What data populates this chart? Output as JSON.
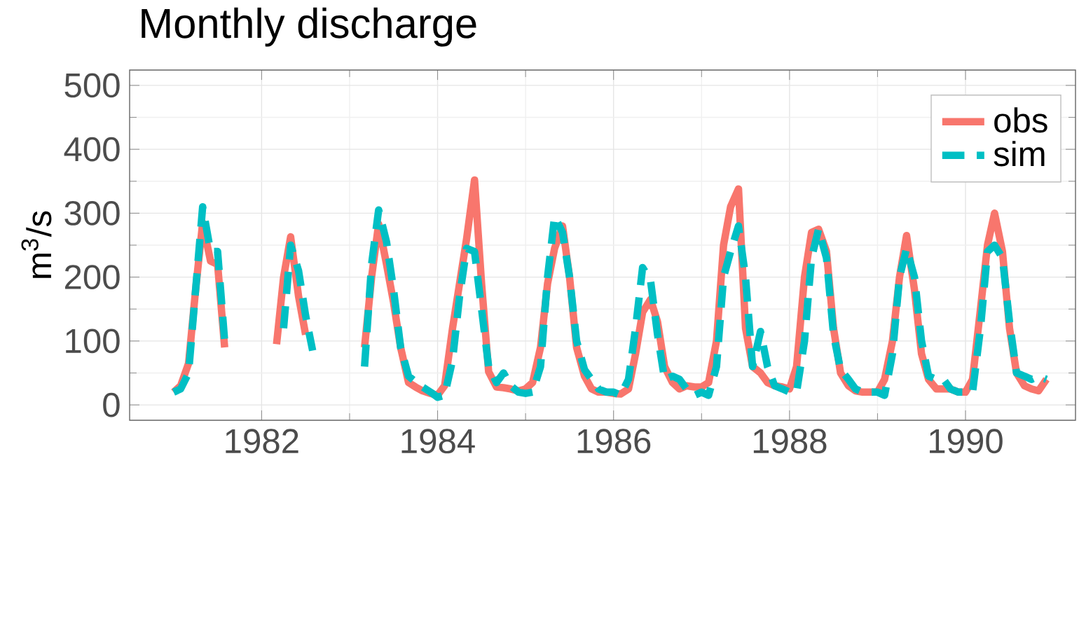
{
  "chart_data": {
    "type": "line",
    "title": "Monthly discharge",
    "ylabel": "m$^{3}$/s",
    "x": [
      "1981-01",
      "1981-02",
      "1981-03",
      "1981-04",
      "1981-05",
      "1981-06",
      "1981-07",
      "1981-08",
      "1981-09",
      "1981-10",
      "1981-11",
      "1981-12",
      "1982-01",
      "1982-02",
      "1982-03",
      "1982-04",
      "1982-05",
      "1982-06",
      "1982-07",
      "1982-08",
      "1982-09",
      "1982-10",
      "1982-11",
      "1982-12",
      "1983-01",
      "1983-02",
      "1983-03",
      "1983-04",
      "1983-05",
      "1983-06",
      "1983-07",
      "1983-08",
      "1983-09",
      "1983-10",
      "1983-11",
      "1983-12",
      "1984-01",
      "1984-02",
      "1984-03",
      "1984-04",
      "1984-05",
      "1984-06",
      "1984-07",
      "1984-08",
      "1984-09",
      "1984-10",
      "1984-11",
      "1984-12",
      "1985-01",
      "1985-02",
      "1985-03",
      "1985-04",
      "1985-05",
      "1985-06",
      "1985-07",
      "1985-08",
      "1985-09",
      "1985-10",
      "1985-11",
      "1985-12",
      "1986-01",
      "1986-02",
      "1986-03",
      "1986-04",
      "1986-05",
      "1986-06",
      "1986-07",
      "1986-08",
      "1986-09",
      "1986-10",
      "1986-11",
      "1986-12",
      "1987-01",
      "1987-02",
      "1987-03",
      "1987-04",
      "1987-05",
      "1987-06",
      "1987-07",
      "1987-08",
      "1987-09",
      "1987-10",
      "1987-11",
      "1987-12",
      "1988-01",
      "1988-02",
      "1988-03",
      "1988-04",
      "1988-05",
      "1988-06",
      "1988-07",
      "1988-08",
      "1988-09",
      "1988-10",
      "1988-11",
      "1988-12",
      "1989-01",
      "1989-02",
      "1989-03",
      "1989-04",
      "1989-05",
      "1989-06",
      "1989-07",
      "1989-08",
      "1989-09",
      "1989-10",
      "1989-11",
      "1989-12",
      "1990-01",
      "1990-02",
      "1990-03",
      "1990-04",
      "1990-05",
      "1990-06",
      "1990-07",
      "1990-08",
      "1990-09",
      "1990-10",
      "1990-11",
      "1990-12"
    ],
    "series": [
      {
        "name": "obs",
        "color": "#f8766d",
        "line_style": "solid",
        "values": [
          20,
          30,
          65,
          180,
          285,
          225,
          220,
          90,
          null,
          null,
          null,
          null,
          null,
          null,
          95,
          200,
          263,
          170,
          110,
          null,
          null,
          null,
          null,
          null,
          null,
          null,
          90,
          200,
          283,
          220,
          160,
          90,
          35,
          28,
          22,
          18,
          15,
          30,
          120,
          190,
          260,
          352,
          190,
          52,
          28,
          27,
          25,
          22,
          25,
          35,
          90,
          190,
          245,
          280,
          200,
          90,
          45,
          25,
          20,
          20,
          18,
          17,
          25,
          80,
          145,
          165,
          130,
          60,
          35,
          25,
          30,
          28,
          28,
          35,
          100,
          250,
          310,
          338,
          120,
          60,
          50,
          35,
          30,
          28,
          25,
          60,
          200,
          270,
          275,
          240,
          120,
          50,
          30,
          22,
          20,
          20,
          20,
          40,
          100,
          200,
          265,
          180,
          80,
          40,
          25,
          25,
          25,
          20,
          20,
          40,
          150,
          250,
          300,
          240,
          120,
          50,
          30,
          25,
          22,
          40
        ]
      },
      {
        "name": "sim",
        "color": "#00bfc4",
        "line_style": "dashed",
        "values": [
          20,
          25,
          50,
          180,
          310,
          240,
          240,
          100,
          null,
          null,
          null,
          null,
          null,
          null,
          null,
          120,
          250,
          210,
          140,
          85,
          null,
          null,
          null,
          null,
          null,
          null,
          60,
          220,
          305,
          255,
          180,
          90,
          45,
          36,
          28,
          20,
          12,
          15,
          70,
          170,
          245,
          240,
          150,
          60,
          35,
          50,
          30,
          20,
          18,
          20,
          60,
          200,
          295,
          270,
          200,
          100,
          55,
          40,
          25,
          20,
          20,
          15,
          40,
          120,
          215,
          195,
          110,
          40,
          45,
          40,
          25,
          15,
          20,
          15,
          60,
          200,
          240,
          280,
          200,
          60,
          115,
          60,
          30,
          25,
          20,
          20,
          100,
          230,
          275,
          230,
          110,
          55,
          40,
          25,
          20,
          20,
          20,
          15,
          80,
          200,
          245,
          200,
          100,
          45,
          40,
          40,
          25,
          20,
          20,
          20,
          120,
          240,
          250,
          230,
          130,
          50,
          45,
          40,
          45,
          40
        ]
      }
    ],
    "xlim": [
      "1980-07",
      "1991-04"
    ],
    "xticks": [
      "1982",
      "1984",
      "1986",
      "1988",
      "1990"
    ],
    "ylim": [
      -24,
      524
    ],
    "yticks": [
      0,
      100,
      200,
      300,
      400,
      500
    ],
    "grid": true,
    "legend": "top right",
    "marker": "none"
  }
}
